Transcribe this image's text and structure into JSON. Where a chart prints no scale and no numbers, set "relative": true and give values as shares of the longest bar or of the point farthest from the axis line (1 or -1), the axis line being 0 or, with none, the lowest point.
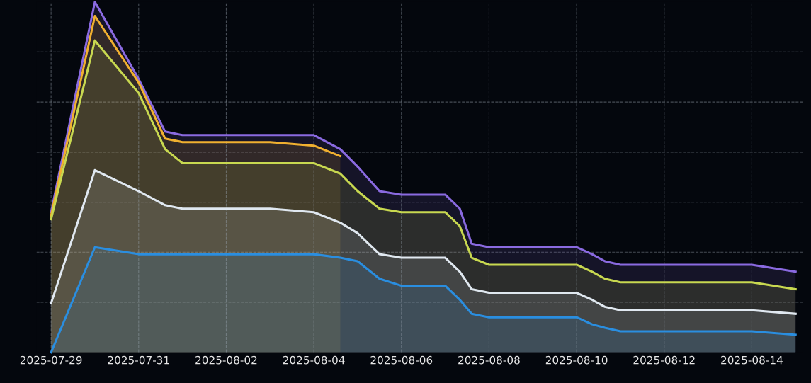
{
  "chart_data": {
    "type": "area",
    "relative": true,
    "grid": true,
    "line_style": "solid",
    "tick_labels": "x",
    "x": [
      "2025-07-29T00:00",
      "2025-07-30T00:00",
      "2025-07-31T00:00",
      "2025-07-31T14:30",
      "2025-08-01T00:00",
      "2025-08-02T00:00",
      "2025-08-03T00:00",
      "2025-08-04T00:00",
      "2025-08-04T14:30",
      "2025-08-05T00:00",
      "2025-08-05T12:00",
      "2025-08-06T00:00",
      "2025-08-07T00:00",
      "2025-08-07T08:00",
      "2025-08-07T14:30",
      "2025-08-08T00:00",
      "2025-08-09T00:00",
      "2025-08-10T00:00",
      "2025-08-10T08:30",
      "2025-08-10T15:30",
      "2025-08-11T00:00",
      "2025-08-12T00:00",
      "2025-08-13T00:00",
      "2025-08-14T00:00",
      "2025-08-15T00:00"
    ],
    "xlim": [
      "2025-07-28T16:00",
      "2025-08-15T04:00"
    ],
    "xticks": [
      "2025-07-29",
      "2025-07-31",
      "2025-08-02",
      "2025-08-04",
      "2025-08-06",
      "2025-08-08",
      "2025-08-10",
      "2025-08-12",
      "2025-08-14"
    ],
    "series": [
      {
        "color": "#8a6ae0",
        "values": [
          0.4,
          1.0,
          0.78,
          0.63,
          0.62,
          0.62,
          0.62,
          0.62,
          0.58,
          0.53,
          0.46,
          0.45,
          0.45,
          0.41,
          0.31,
          0.3,
          0.3,
          0.3,
          0.28,
          0.26,
          0.25,
          0.25,
          0.25,
          0.25,
          0.23
        ]
      },
      {
        "color": "#f0b030",
        "values": [
          0.39,
          0.96,
          0.77,
          0.61,
          0.6,
          0.6,
          0.6,
          0.59,
          0.56,
          null,
          null,
          null,
          null,
          null,
          null,
          null,
          null,
          null,
          null,
          null,
          null,
          null,
          null,
          null,
          null
        ]
      },
      {
        "color": "#c8d850",
        "values": [
          0.38,
          0.89,
          0.74,
          0.58,
          0.54,
          0.54,
          0.54,
          0.54,
          0.51,
          0.46,
          0.41,
          0.4,
          0.4,
          0.36,
          0.27,
          0.25,
          0.25,
          0.25,
          0.23,
          0.21,
          0.2,
          0.2,
          0.2,
          0.2,
          0.18
        ]
      },
      {
        "color": "#e0e8f0",
        "values": [
          0.14,
          0.52,
          0.46,
          0.42,
          0.41,
          0.41,
          0.41,
          0.4,
          0.37,
          0.34,
          0.28,
          0.27,
          0.27,
          0.23,
          0.18,
          0.17,
          0.17,
          0.17,
          0.15,
          0.13,
          0.12,
          0.12,
          0.12,
          0.12,
          0.11
        ]
      },
      {
        "color": "#2a8ee0",
        "values": [
          0.0,
          0.3,
          0.28,
          0.28,
          0.28,
          0.28,
          0.28,
          0.28,
          0.27,
          0.26,
          0.21,
          0.19,
          0.19,
          0.15,
          0.11,
          0.1,
          0.1,
          0.1,
          0.08,
          0.07,
          0.06,
          0.06,
          0.06,
          0.06,
          0.05
        ]
      }
    ]
  }
}
